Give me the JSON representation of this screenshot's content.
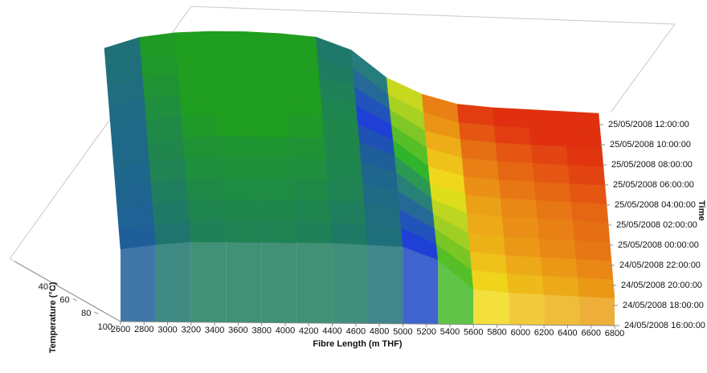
{
  "chart_data": {
    "type": "surface",
    "x_label": "Fibre Length (m THF)",
    "y_label": "Time",
    "z_label": "Temperature (°C)",
    "x": [
      2600,
      2900,
      3200,
      3500,
      3800,
      4100,
      4400,
      4700,
      5000,
      5300,
      5600,
      5900,
      6200,
      6500,
      6800
    ],
    "xlim": [
      2600,
      6800
    ],
    "xticks": [
      2600,
      2800,
      3000,
      3200,
      3400,
      3600,
      3800,
      4000,
      4200,
      4400,
      4600,
      4800,
      5000,
      5200,
      5400,
      5600,
      5800,
      6000,
      6200,
      6400,
      6600,
      6800
    ],
    "yticks": [
      "24/05/2008 16:00:00",
      "24/05/2008 18:00:00",
      "24/05/2008 20:00:00",
      "24/05/2008 22:00:00",
      "25/05/2008 00:00:00",
      "25/05/2008 02:00:00",
      "25/05/2008 04:00:00",
      "25/05/2008 06:00:00",
      "25/05/2008 08:00:00",
      "25/05/2008 10:00:00",
      "25/05/2008 12:00:00"
    ],
    "zlim": [
      40,
      100
    ],
    "zticks": [
      40,
      60,
      80,
      100
    ],
    "colormap": [
      "#1f9e1f",
      "#1f3fd8",
      "#2fb52a",
      "#f2e21c",
      "#e0300f"
    ],
    "z": [
      [
        55,
        52,
        50,
        50,
        50,
        50,
        50,
        51,
        52,
        60,
        78,
        80,
        81,
        82,
        83
      ],
      [
        55,
        52,
        50,
        49,
        49,
        49,
        50,
        51,
        53,
        63,
        79,
        81,
        82,
        83,
        84
      ],
      [
        55,
        51,
        49,
        49,
        49,
        49,
        49,
        50,
        54,
        66,
        80,
        82,
        83,
        84,
        85
      ],
      [
        55,
        51,
        49,
        48,
        48,
        48,
        49,
        50,
        55,
        69,
        81,
        83,
        84,
        85,
        86
      ],
      [
        55,
        50,
        48,
        48,
        48,
        48,
        48,
        50,
        56,
        72,
        81,
        83,
        84,
        85,
        86
      ],
      [
        55,
        50,
        48,
        47,
        47,
        47,
        48,
        50,
        58,
        75,
        82,
        84,
        85,
        86,
        87
      ],
      [
        55,
        50,
        47,
        46,
        46,
        46,
        47,
        51,
        61,
        77,
        83,
        85,
        86,
        87,
        88
      ],
      [
        55,
        49,
        47,
        46,
        45,
        46,
        47,
        52,
        64,
        78,
        84,
        86,
        87,
        88,
        89
      ],
      [
        55,
        49,
        46,
        45,
        45,
        45,
        47,
        53,
        67,
        80,
        85,
        87,
        88,
        89,
        90
      ],
      [
        55,
        48,
        46,
        44,
        44,
        45,
        47,
        54,
        70,
        81,
        87,
        89,
        90,
        91,
        92
      ],
      [
        55,
        48,
        45,
        44,
        44,
        45,
        47,
        55,
        72,
        82,
        88,
        90,
        91,
        92,
        93
      ]
    ]
  }
}
